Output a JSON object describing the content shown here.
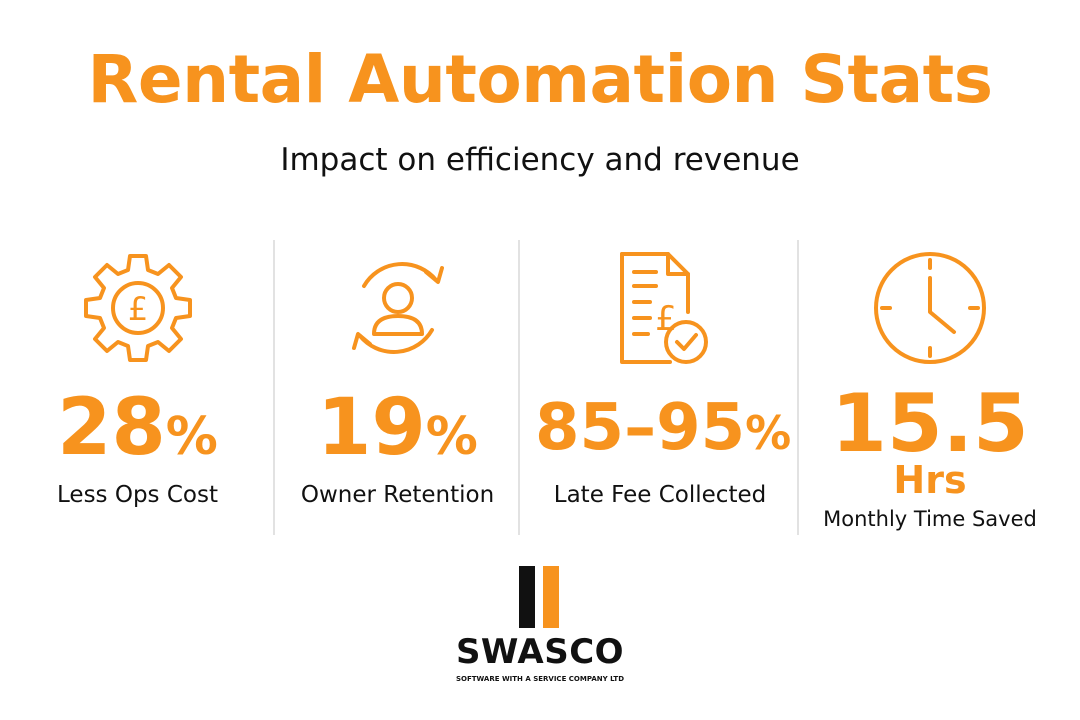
{
  "header": {
    "title": "Rental Automation Stats",
    "subtitle": "Impact on efficiency and revenue"
  },
  "stats": [
    {
      "icon": "gear-pound-icon",
      "value": "28",
      "suffix": "%",
      "label": "Less Ops Cost"
    },
    {
      "icon": "user-refresh-icon",
      "value": "19",
      "suffix": "%",
      "label": "Owner Retention"
    },
    {
      "icon": "invoice-pound-check-icon",
      "value": "85–95",
      "suffix": "%",
      "label": "Late Fee Collected"
    },
    {
      "icon": "clock-icon",
      "value": "15.5",
      "unit": "Hrs",
      "label": "Monthly Time Saved"
    }
  ],
  "logo": {
    "brand": "SWASCO",
    "tagline": "SOFTWARE WITH A SERVICE COMPANY LTD"
  },
  "colors": {
    "accent": "#F7931E",
    "text": "#111111",
    "divider": "#E2E2E2"
  }
}
